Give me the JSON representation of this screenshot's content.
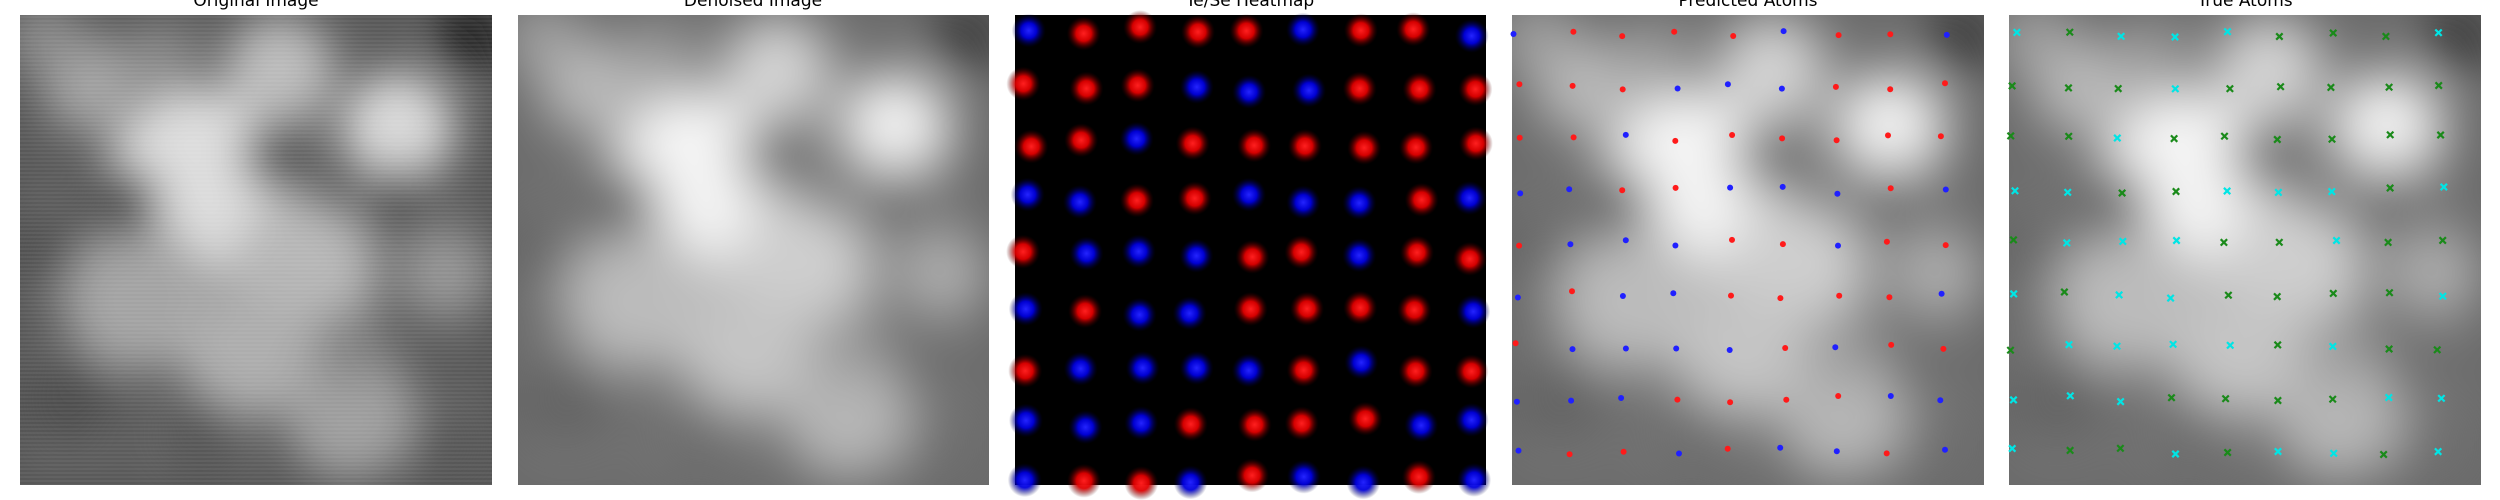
{
  "panels": [
    {
      "id": "original",
      "title": "Original Image"
    },
    {
      "id": "denoised",
      "title": "Denoised Image"
    },
    {
      "id": "heatmap",
      "title": "Te/Se Heatmap"
    },
    {
      "id": "predicted",
      "title": "Predicted Atoms"
    },
    {
      "id": "true",
      "title": "True Atoms"
    }
  ],
  "colors": {
    "te": "#ff1a1a",
    "se": "#2020ff",
    "heatmap_bg": "#000000",
    "true_a": "#00e5e5",
    "true_b": "#1a8a1a"
  },
  "lattice": {
    "rows": 9,
    "cols": 9,
    "heatmap_species": [
      "SRRRRSRRS",
      "RRRSSSRRR",
      "RRSRRRRRR",
      "SSRRSSSRS",
      "RSSSRRSRR",
      "SRSSRRRRS",
      "RSSSSRSRR",
      "SSSRRRRSS",
      "SRRSRSSRS"
    ],
    "predicted_species": [
      "SRRRRSRRS",
      "RRRSSSRRR",
      "RRSRRRRRR",
      "SSRRSSSRS",
      "RSSSRRSRR",
      "SRSSRRRRS",
      "RSSSSRSRR",
      "SSSRRRRSS",
      "SRRSRSSRS"
    ],
    "true_species": [
      "ABAAABBBA",
      "BBBABBBBB",
      "BBABBBBBB",
      "AABBAAABA",
      "BAAABBABB",
      "ABAABBBBA",
      "BAAAABABB",
      "AAABBBBAA",
      "ABBABAABA"
    ]
  }
}
